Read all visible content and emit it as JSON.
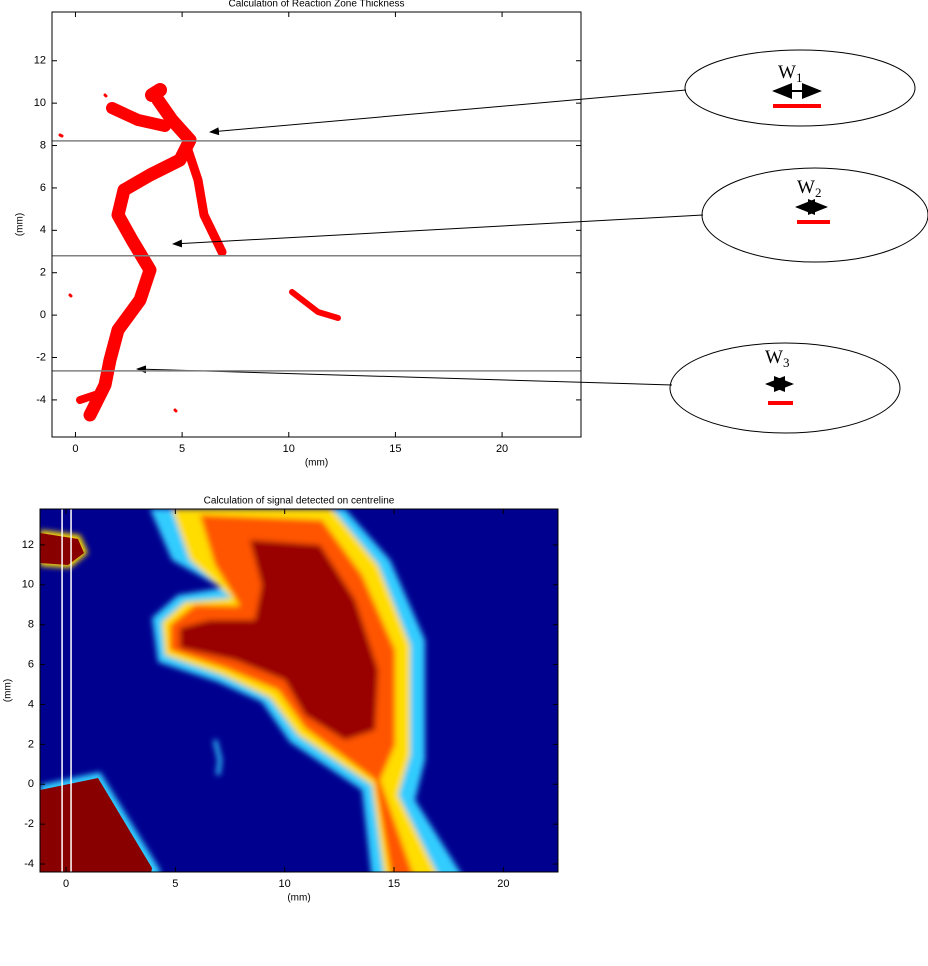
{
  "chart_data": [
    {
      "type": "image",
      "title": "Calculation of Reaction Zone Thickness",
      "xlabel": "(mm)",
      "ylabel": "(mm)",
      "xlim": [
        -1.1,
        23.7
      ],
      "ylim": [
        -5.75,
        14.3
      ],
      "xticks": [
        0,
        5,
        10,
        15,
        20
      ],
      "yticks": [
        -4,
        -2,
        0,
        2,
        4,
        6,
        8,
        10,
        12
      ],
      "hlines": [
        8.22,
        2.8,
        -2.63
      ],
      "line_color": "#808080",
      "annotations": [
        {
          "text": "W",
          "subscript": "1"
        },
        {
          "text": "W",
          "subscript": "2"
        },
        {
          "text": "W",
          "subscript": "3"
        }
      ]
    },
    {
      "type": "heatmap",
      "title": "Calculation of signal detected on centreline",
      "xlabel": "(mm)",
      "ylabel": "(mm)",
      "xlim": [
        -1.19,
        22.5
      ],
      "ylim": [
        -4.4,
        13.8
      ],
      "xticks": [
        0,
        5,
        10,
        15,
        20
      ],
      "yticks": [
        -4,
        -2,
        0,
        2,
        4,
        6,
        8,
        10,
        12
      ],
      "vlines": [
        -0.18,
        0.23
      ],
      "line_color": "#ffffff"
    }
  ]
}
